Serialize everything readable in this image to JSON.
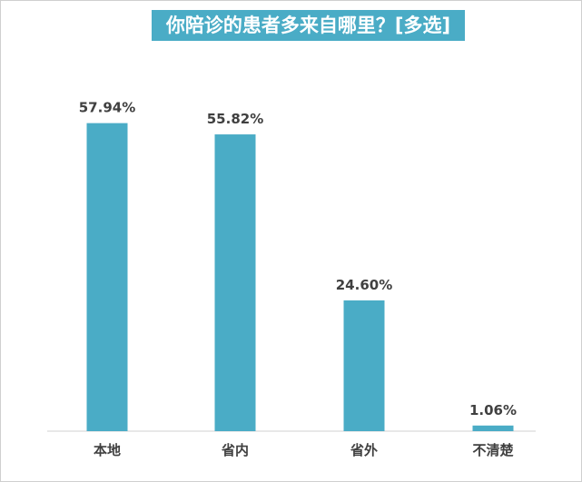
{
  "chart_data": {
    "type": "bar",
    "title": "你陪诊的患者多来自哪里？[多选]",
    "categories": [
      "本地",
      "省内",
      "省外",
      "不清楚"
    ],
    "values": [
      57.94,
      55.82,
      24.6,
      1.06
    ],
    "value_labels": [
      "57.94%",
      "55.82%",
      "24.60%",
      "1.06%"
    ],
    "ylim": [
      0,
      70
    ],
    "grid": false,
    "legend": "none",
    "color": "#4aacc6"
  }
}
